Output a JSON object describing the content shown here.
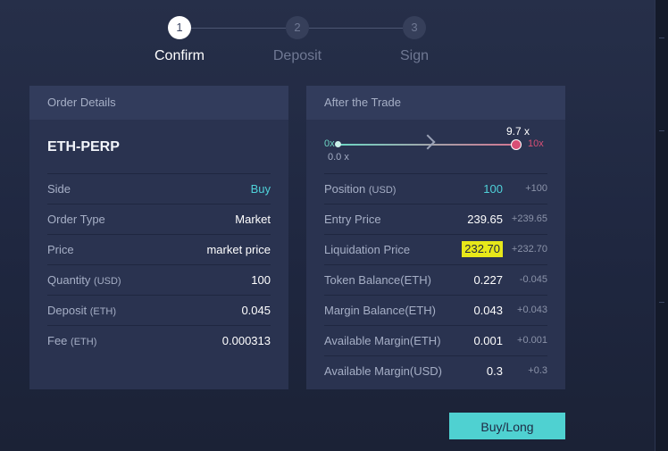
{
  "stepper": {
    "steps": [
      {
        "number": "1",
        "label": "Confirm"
      },
      {
        "number": "2",
        "label": "Deposit"
      },
      {
        "number": "3",
        "label": "Sign"
      }
    ]
  },
  "order_details": {
    "header": "Order Details",
    "market": "ETH-PERP",
    "rows": [
      {
        "label": "Side",
        "unit": "",
        "value": "Buy"
      },
      {
        "label": "Order Type",
        "unit": "",
        "value": "Market"
      },
      {
        "label": "Price",
        "unit": "",
        "value": "market price"
      },
      {
        "label": "Quantity",
        "unit": "(USD)",
        "value": "100"
      },
      {
        "label": "Deposit",
        "unit": "(ETH)",
        "value": "0.045"
      },
      {
        "label": "Fee",
        "unit": "(ETH)",
        "value": "0.000313"
      }
    ],
    "accent_color": "#4fd1d9"
  },
  "after_trade": {
    "header": "After the Trade",
    "leverage": {
      "min_label": "0x",
      "max_label": "10x",
      "current_label": "9.7 x",
      "start_label": "0.0 x"
    },
    "rows": [
      {
        "label": "Position",
        "unit": "(USD)",
        "value": "100",
        "delta": "+100"
      },
      {
        "label": "Entry Price",
        "unit": "",
        "value": "239.65",
        "delta": "+239.65"
      },
      {
        "label": "Liquidation Price",
        "unit": "",
        "value": "232.70",
        "delta": "+232.70"
      },
      {
        "label": "Token Balance(ETH)",
        "unit": "",
        "value": "0.227",
        "delta": "-0.045"
      },
      {
        "label": "Margin Balance(ETH)",
        "unit": "",
        "value": "0.043",
        "delta": "+0.043"
      },
      {
        "label": "Available Margin(ETH)",
        "unit": "",
        "value": "0.001",
        "delta": "+0.001"
      },
      {
        "label": "Available Margin(USD)",
        "unit": "",
        "value": "0.3",
        "delta": "+0.3"
      }
    ],
    "highlight_color": "#e7e81a"
  },
  "buy_button": {
    "label": "Buy/Long"
  }
}
